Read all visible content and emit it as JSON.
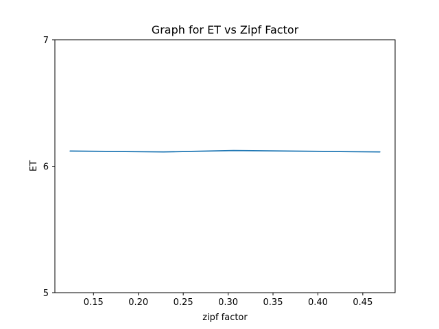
{
  "chart_data": {
    "type": "line",
    "title": "Graph for ET vs Zipf Factor",
    "xlabel": "zipf factor",
    "ylabel": "ET",
    "xlim": [
      0.107,
      0.486
    ],
    "ylim": [
      5,
      7
    ],
    "xticks": [
      0.15,
      0.2,
      0.25,
      0.3,
      0.35,
      0.4,
      0.45
    ],
    "xtick_labels": [
      "0.15",
      "0.20",
      "0.25",
      "0.30",
      "0.35",
      "0.40",
      "0.45"
    ],
    "yticks": [
      5,
      6,
      7
    ],
    "ytick_labels": [
      "5",
      "6",
      "7"
    ],
    "grid": false,
    "series": [
      {
        "color": "#1f77b4",
        "x": [
          0.124,
          0.228,
          0.306,
          0.469
        ],
        "y": [
          6.12,
          6.113,
          6.124,
          6.113
        ]
      }
    ]
  }
}
